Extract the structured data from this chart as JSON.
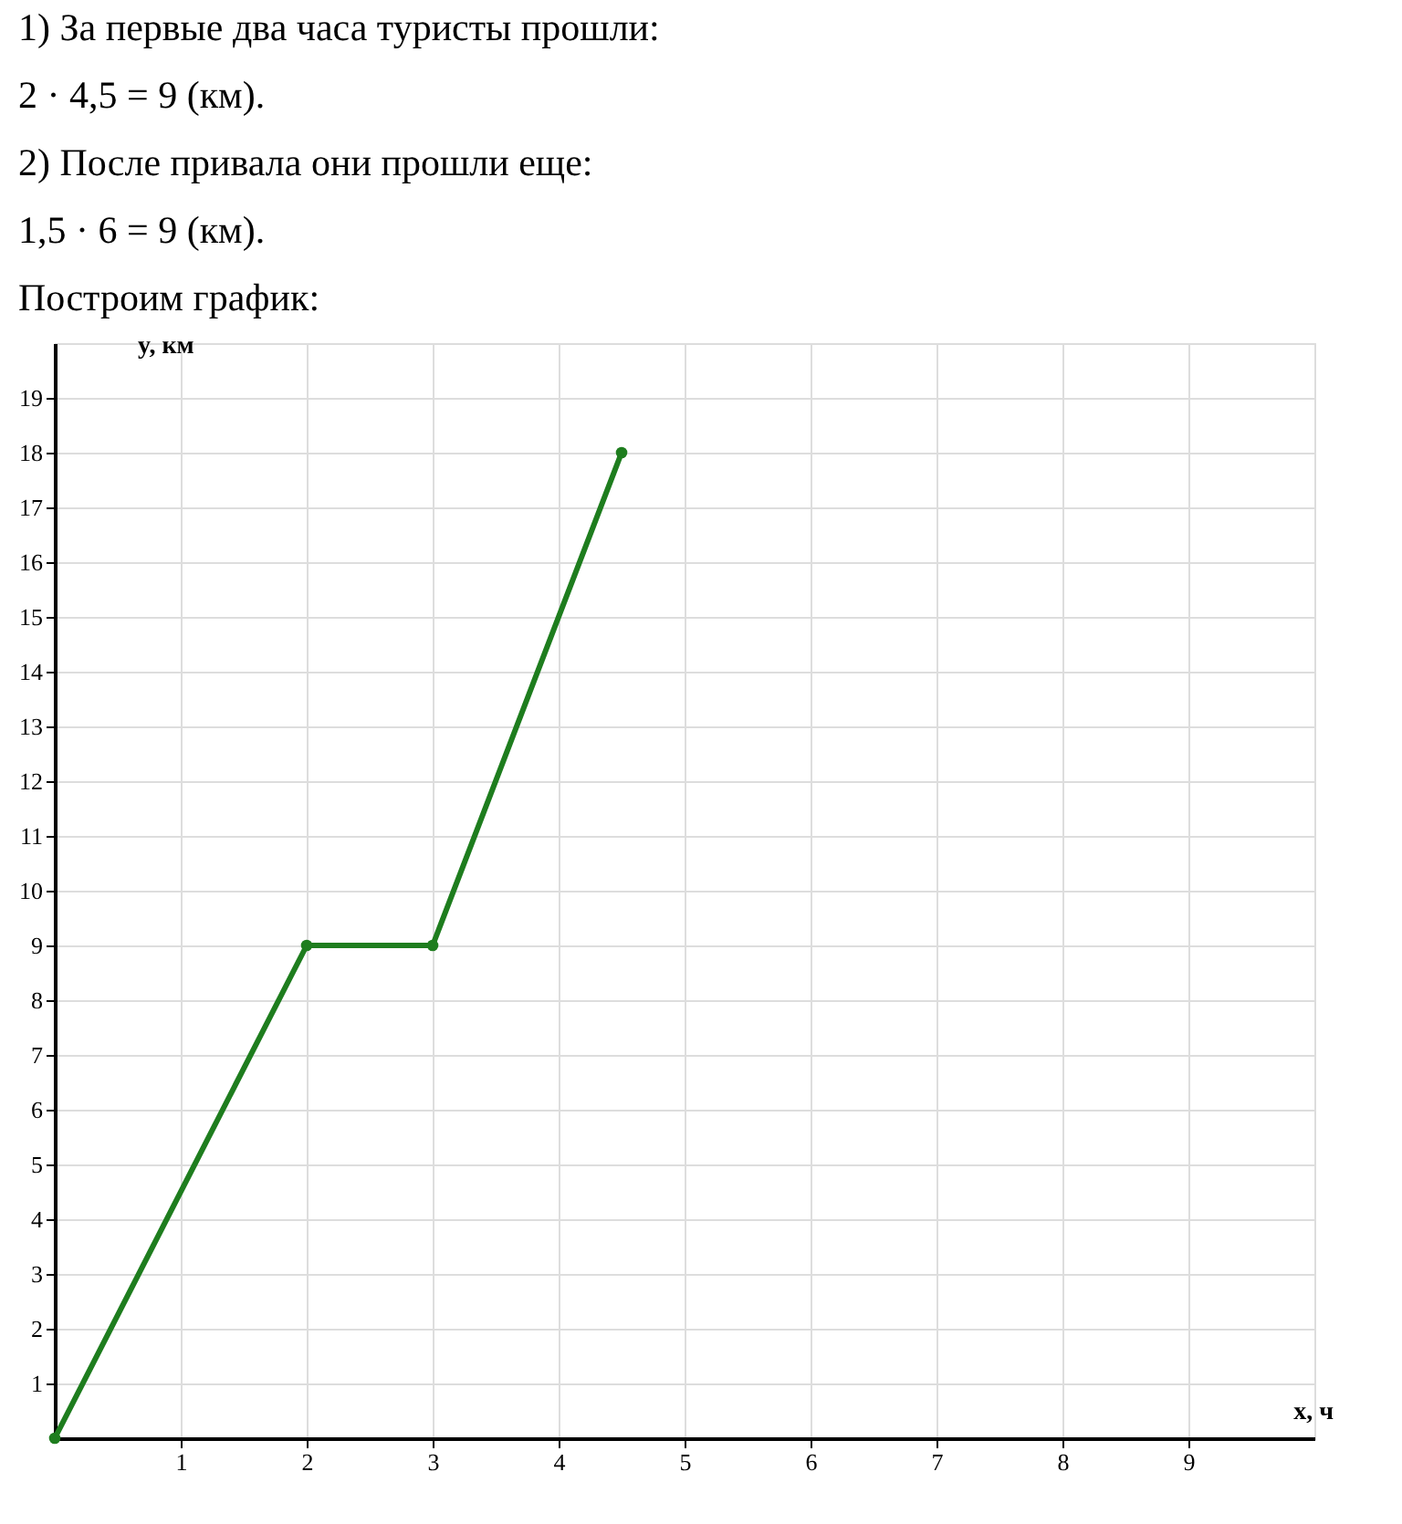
{
  "chart_data": {
    "type": "line",
    "annotations": [
      "1) За первые два часа туристы прошли:",
      "2 · 4,5 = 9 (км).",
      "2) После привала они прошли еще:",
      "1,5 · 6 = 9 (км).",
      "Построим график:"
    ],
    "xlabel": "x, ч",
    "ylabel": "y, км",
    "x": [
      0,
      2,
      3,
      4.5
    ],
    "series": [
      {
        "color": "#1e7d1e",
        "values": [
          0,
          9,
          9,
          18
        ]
      }
    ],
    "xlim": [
      0,
      10
    ],
    "ylim": [
      0,
      20
    ],
    "xticks": [
      1,
      2,
      3,
      4,
      5,
      6,
      7,
      8,
      9
    ],
    "yticks": [
      1,
      2,
      3,
      4,
      5,
      6,
      7,
      8,
      9,
      10,
      11,
      12,
      13,
      14,
      15,
      16,
      17,
      18,
      19
    ],
    "grid": true,
    "marker": "circle",
    "line_style": "solid"
  }
}
